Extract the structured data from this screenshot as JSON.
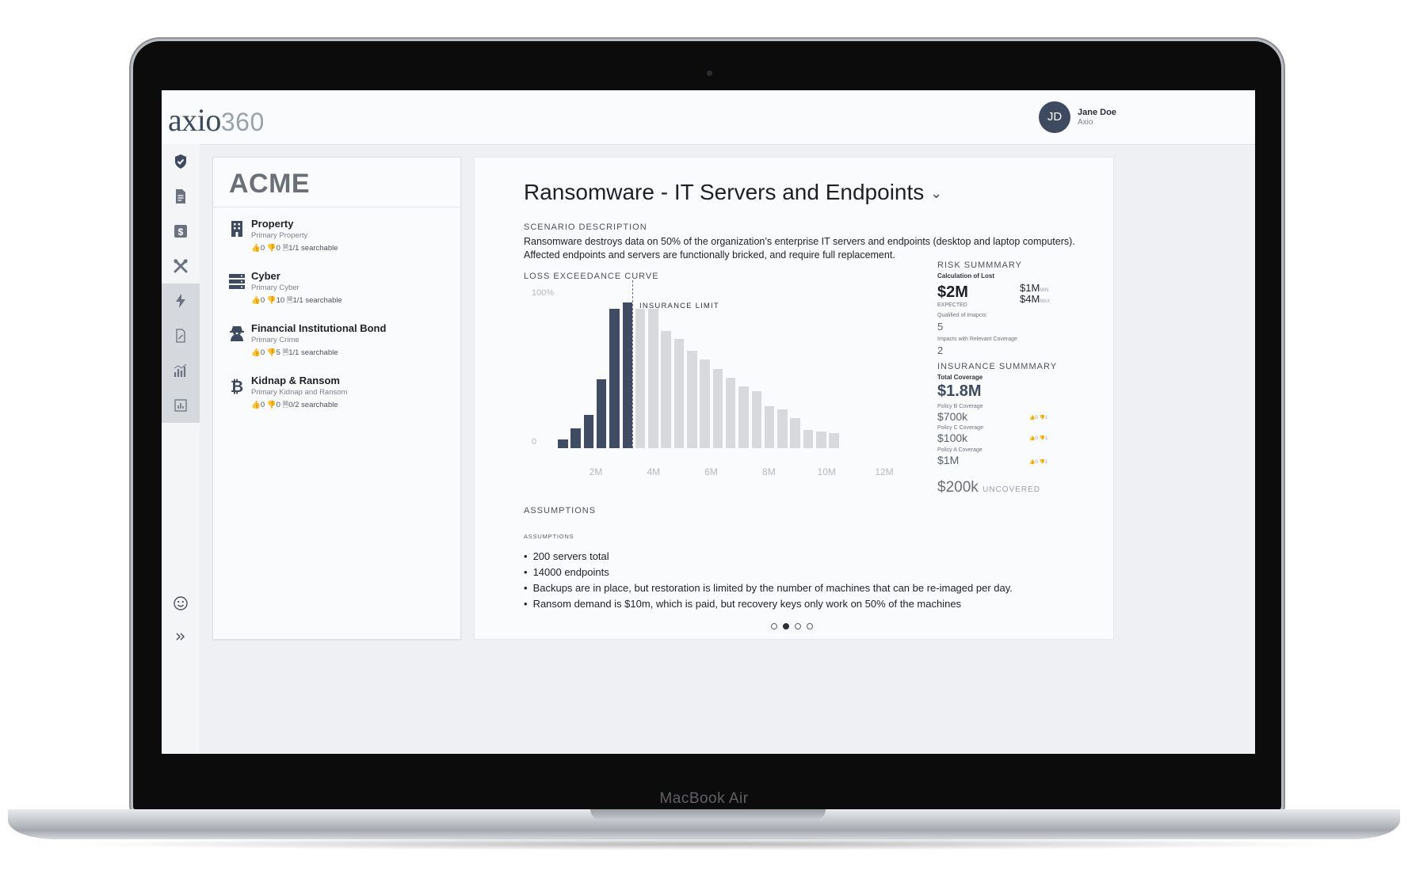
{
  "device": {
    "label": "MacBook Air"
  },
  "header": {
    "logo_word": "axio",
    "logo_num": "360",
    "user": {
      "initials": "JD",
      "name": "Jane Doe",
      "org": "Axio"
    }
  },
  "sidebar": {
    "icons": [
      "shield-check-icon",
      "document-icon",
      "dollar-icon",
      "tools-icon",
      "lightning-icon",
      "report-icon",
      "bar-chart-icon",
      "analytics-icon",
      "smiley-icon",
      "expand-icon"
    ]
  },
  "company": "ACME",
  "policies": [
    {
      "name": "Property",
      "sub": "Primary Property",
      "up": "0",
      "down": "0",
      "search": "1/1 searchable",
      "icon": "building-icon"
    },
    {
      "name": "Cyber",
      "sub": "Primary Cyber",
      "up": "0",
      "down": "10",
      "search": "1/1 searchable",
      "icon": "server-icon"
    },
    {
      "name": "Financial Institutional Bond",
      "sub": "Primary Crime",
      "up": "0",
      "down": "5",
      "search": "1/1 searchable",
      "icon": "spy-icon"
    },
    {
      "name": "Kidnap & Ransom",
      "sub": "Primary Kidnap and Ransom",
      "up": "0",
      "down": "0",
      "search": "0/2 searchable",
      "icon": "bitcoin-icon"
    }
  ],
  "scenario": {
    "title": "Ransomware - IT Servers and Endpoints",
    "desc_label": "SCENARIO DESCRIPTION",
    "description_1": "Ransomware destroys data on 50% of the organization’s enterprise IT servers and endpoints (desktop and laptop computers).",
    "description_2": "Affected endpoints and servers are functionally bricked, and require full replacement.",
    "chart_label": "LOSS EXCEEDANCE CURVE"
  },
  "chart_data": {
    "type": "bar",
    "ylabels": [
      "100%",
      "0"
    ],
    "xticks": [
      "2M",
      "4M",
      "6M",
      "8M",
      "10M",
      "12M"
    ],
    "annotation": "INSURANCE LIMIT",
    "values": [
      5,
      12,
      20,
      41,
      83,
      87,
      83,
      83,
      70,
      65,
      58,
      53,
      47,
      42,
      37,
      34,
      25,
      23,
      18,
      11,
      10,
      9
    ],
    "covered_count": 6,
    "colors": {
      "covered": "#3f4c63",
      "uncovered": "#d7d9dc"
    }
  },
  "risk_summary": {
    "label": "RISK SUMMMARY",
    "calc_label": "Calculation of Lost",
    "expected": "$2M",
    "expected_label": "EXPECTED",
    "min": "$1M",
    "min_label": "MIN",
    "max": "$4M",
    "max_label": "MAX",
    "qualified_label": "Qualified of Imapcts",
    "qualified": "5",
    "relevant_label": "Impacts with Relevant Coverage",
    "relevant": "2"
  },
  "insurance_summary": {
    "label": "INSURANCE SUMMMARY",
    "total_label": "Total Coverage",
    "total": "$1.8M",
    "policies": [
      {
        "label": "Policy B Coverage",
        "value": "$700k"
      },
      {
        "label": "Policy C Coverage",
        "value": "$100k"
      },
      {
        "label": "Policy A Coverage",
        "value": "$1M"
      }
    ],
    "uncovered": "$200k",
    "uncovered_label": "UNCOVERED"
  },
  "assumptions": {
    "label": "ASSUMPTIONS",
    "sublabel": "ASSUMPTIONS",
    "items": [
      "200 servers total",
      "14000 endpoints",
      "Backups are in place, but restoration is limited by the number of machines that can be re-imaged per day.",
      "Ransom demand is $10m, which is paid, but recovery keys only work on 50% of the machines"
    ]
  },
  "pager": {
    "count": 4,
    "active": 1
  }
}
